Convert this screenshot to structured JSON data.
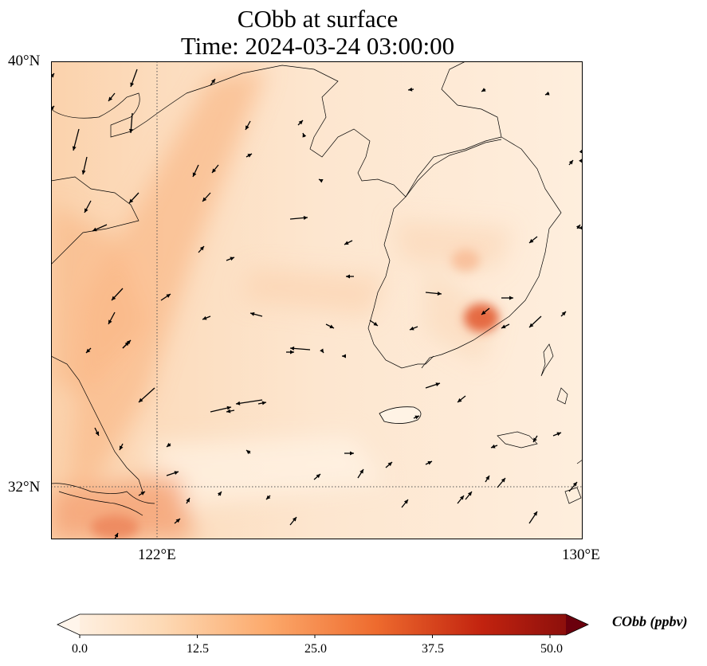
{
  "title_line1": "CObb at surface",
  "title_line2": "Time: 2024-03-24 03:00:00",
  "lat_ticks": [
    "40°N",
    "32°N"
  ],
  "lon_ticks": [
    "122°E",
    "130°E"
  ],
  "colorbar": {
    "label": "CObb (ppbv)",
    "ticks": [
      "0.0",
      "12.5",
      "25.0",
      "37.5",
      "50.0"
    ],
    "colors": [
      "#fff5eb",
      "#fdd0a2",
      "#fd8d3c",
      "#d94801",
      "#a50f15",
      "#67000d"
    ]
  },
  "map": {
    "extent": {
      "lon_min": 120,
      "lon_max": 130,
      "lat_min": 31,
      "lat_max": 40
    },
    "field_base_color": "#fde8d2",
    "hotspot_color": "#e0603a"
  }
}
